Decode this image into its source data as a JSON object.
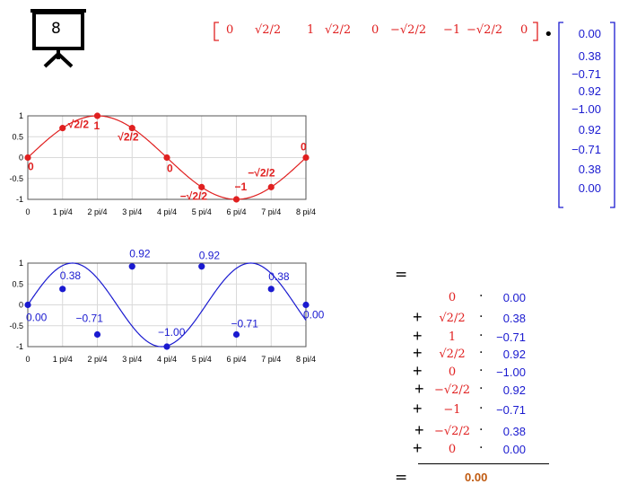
{
  "slide_icon": {
    "number": "8"
  },
  "row_vector": {
    "entries": [
      "0",
      "√2/2",
      "1",
      "√2/2",
      "0",
      "−√2/2",
      "−1",
      "−√2/2",
      "0"
    ]
  },
  "dot_symbol": "•",
  "column_vector": {
    "entries": [
      "0.00",
      "0.38",
      "−0.71",
      "0.92",
      "−1.00",
      "0.92",
      "−0.71",
      "0.38",
      "0.00"
    ]
  },
  "chart_data": [
    {
      "type": "line",
      "x_tick_labels": [
        "0",
        "1 pi/4",
        "2 pi/4",
        "3 pi/4",
        "4 pi/4",
        "5 pi/4",
        "6 pi/4",
        "7 pi/4",
        "8 pi/4"
      ],
      "y_tick_labels": [
        "1",
        "0.5",
        "0",
        "-0.5",
        "-1"
      ],
      "ylim": [
        -1,
        1
      ],
      "x": [
        0,
        1,
        2,
        3,
        4,
        5,
        6,
        7,
        8
      ],
      "values": [
        0,
        0.707,
        1,
        0.707,
        0,
        -0.707,
        -1,
        -0.707,
        0
      ],
      "point_labels": [
        "0",
        "√2/2",
        "1",
        "√2/2",
        "0",
        "−√2/2",
        "−1",
        "−√2/2",
        "0"
      ],
      "color": "#e02020",
      "grid": true
    },
    {
      "type": "line",
      "x_tick_labels": [
        "0",
        "1 pi/4",
        "2 pi/4",
        "3 pi/4",
        "4 pi/4",
        "5 pi/4",
        "6 pi/4",
        "7 pi/4",
        "8 pi/4"
      ],
      "y_tick_labels": [
        "1",
        "0.5",
        "0",
        "-0.5",
        "-1"
      ],
      "ylim": [
        -1,
        1
      ],
      "x": [
        0,
        1,
        2,
        3,
        4,
        5,
        6,
        7,
        8
      ],
      "values": [
        0.0,
        0.38,
        -0.71,
        0.92,
        -1.0,
        0.92,
        -0.71,
        0.38,
        0.0
      ],
      "point_labels": [
        "0.00",
        "0.38",
        "−0.71",
        "0.92",
        "−1.00",
        "0.92",
        "−0.71",
        "0.38",
        "0.00"
      ],
      "color": "#1a1ad0",
      "grid": true
    }
  ],
  "sum": {
    "equals_top": "=",
    "terms": [
      {
        "op": "",
        "a": "0",
        "b": "0.00"
      },
      {
        "op": "+",
        "a": "√2/2",
        "b": "0.38"
      },
      {
        "op": "+",
        "a": "1",
        "b": "−0.71"
      },
      {
        "op": "+",
        "a": "√2/2",
        "b": "0.92"
      },
      {
        "op": "+",
        "a": "0",
        "b": "−1.00"
      },
      {
        "op": "+",
        "a": "−√2/2",
        "b": "0.92"
      },
      {
        "op": "+",
        "a": "−1",
        "b": "−0.71"
      },
      {
        "op": "+",
        "a": "−√2/2",
        "b": "0.38"
      },
      {
        "op": "+",
        "a": "0",
        "b": "0.00"
      }
    ],
    "equals_bottom": "=",
    "result": "0.00",
    "result_color": "#c05a10"
  }
}
